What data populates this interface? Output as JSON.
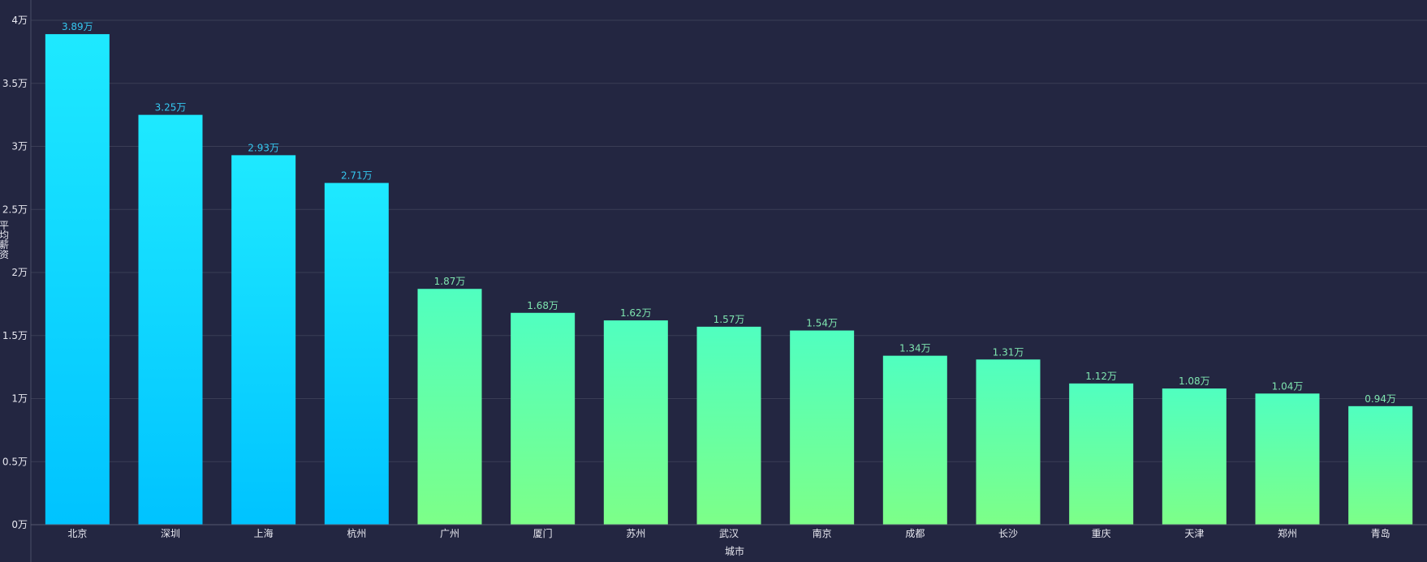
{
  "chart_data": {
    "type": "bar",
    "title": "",
    "xlabel": "城市",
    "ylabel": "平均薪资",
    "ylim": [
      0,
      40000
    ],
    "yticks": [
      {
        "value": 0,
        "label": "0万"
      },
      {
        "value": 5000,
        "label": "0.5万"
      },
      {
        "value": 10000,
        "label": "1万"
      },
      {
        "value": 15000,
        "label": "1.5万"
      },
      {
        "value": 20000,
        "label": "2万"
      },
      {
        "value": 25000,
        "label": "2.5万"
      },
      {
        "value": 30000,
        "label": "3万"
      },
      {
        "value": 35000,
        "label": "3.5万"
      },
      {
        "value": 40000,
        "label": "4万"
      }
    ],
    "categories": [
      "北京",
      "深圳",
      "上海",
      "杭州",
      "广州",
      "厦门",
      "苏州",
      "武汉",
      "南京",
      "成都",
      "长沙",
      "重庆",
      "天津",
      "郑州",
      "青岛"
    ],
    "values": [
      38900,
      32500,
      29300,
      27100,
      18700,
      16800,
      16200,
      15700,
      15400,
      13400,
      13100,
      11200,
      10800,
      10400,
      9400
    ],
    "data_labels": [
      "3.89万",
      "3.25万",
      "2.93万",
      "2.71万",
      "1.87万",
      "1.68万",
      "1.62万",
      "1.57万",
      "1.54万",
      "1.34万",
      "1.31万",
      "1.12万",
      "1.08万",
      "1.04万",
      "0.94万"
    ],
    "grid": true,
    "colors": {
      "background": "#232641",
      "high_top": "#1ee9ff",
      "high_bottom": "#00c3ff",
      "low_top": "#50ffc0",
      "low_bottom": "#7dff88",
      "grid": "#3a3d55",
      "axis_text": "#e8e8f0",
      "label_high": "#35c8f0",
      "label_low": "#7fe6b0"
    }
  }
}
